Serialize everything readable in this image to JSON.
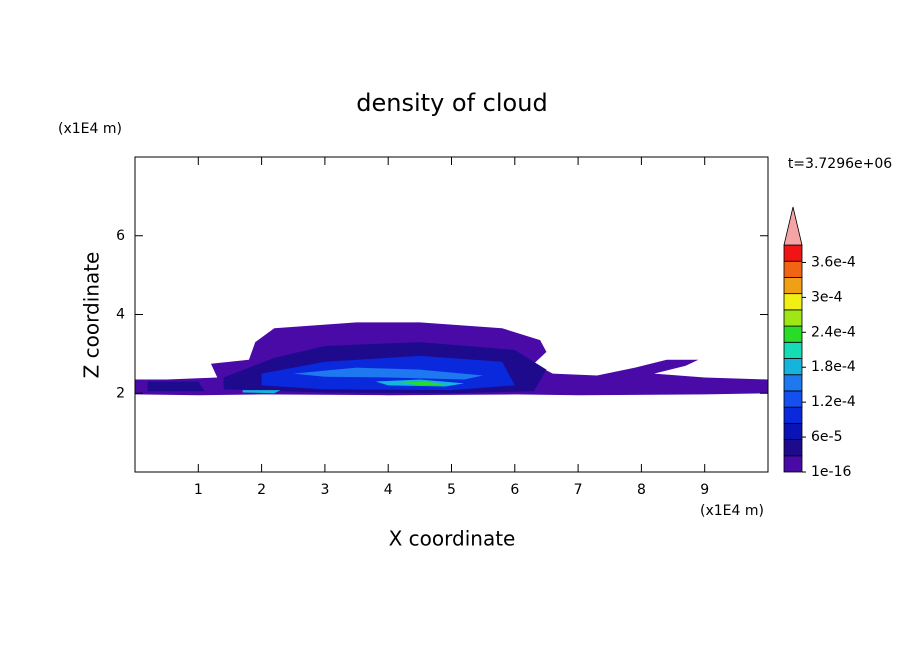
{
  "chart_data": {
    "type": "contour",
    "title": "density of cloud",
    "x_label": "X coordinate",
    "y_label": "Z coordinate",
    "x_unit": "(x1E4 m)",
    "y_unit": "(x1E4 m)",
    "time_label": "t=3.7296e+06",
    "xlim": [
      0,
      10
    ],
    "ylim": [
      0,
      8
    ],
    "xticks": [
      1,
      2,
      3,
      4,
      5,
      6,
      7,
      8,
      9
    ],
    "yticks": [
      2,
      4,
      6
    ],
    "clim": [
      1e-16,
      0.00039
    ],
    "colors": [
      "#4a0aa8",
      "#1e0a8c",
      "#0a14b4",
      "#0a28dc",
      "#1450f0",
      "#1e78f0",
      "#14b4dc",
      "#14dcb4",
      "#28dc28",
      "#a0e614",
      "#f0f014",
      "#f0a014",
      "#f06414",
      "#f01414"
    ],
    "extend_color": "#f4a4a4",
    "colorbar_ticks": [
      {
        "value": 1e-16,
        "label": "1e-16"
      },
      {
        "value": 6e-05,
        "label": "6e-5"
      },
      {
        "value": 0.00012,
        "label": "1.2e-4"
      },
      {
        "value": 0.00018,
        "label": "1.8e-4"
      },
      {
        "value": 0.00024,
        "label": "2.4e-4"
      },
      {
        "value": 0.0003,
        "label": "3e-4"
      },
      {
        "value": 0.00036,
        "label": "3.6e-4"
      }
    ],
    "contours": [
      {
        "level": 1e-16,
        "x": [
          0,
          0.5,
          1.3,
          1.2,
          1.8,
          1.9,
          2.2,
          3.5,
          4.5,
          5.8,
          6.4,
          6.5,
          6.3,
          6.6,
          7.3,
          7.9,
          8.4,
          8.9,
          8.7,
          8.2,
          9.0,
          10,
          10,
          9,
          7,
          6,
          4,
          2,
          1,
          0
        ],
        "z": [
          2.35,
          2.35,
          2.4,
          2.75,
          2.85,
          3.3,
          3.65,
          3.8,
          3.8,
          3.65,
          3.35,
          3.05,
          2.75,
          2.5,
          2.45,
          2.65,
          2.85,
          2.85,
          2.7,
          2.5,
          2.4,
          2.35,
          2.0,
          1.97,
          1.95,
          1.97,
          1.95,
          1.97,
          1.95,
          1.97
        ]
      },
      {
        "level": 3e-05,
        "x": [
          1.4,
          2.2,
          3.0,
          4.5,
          6.0,
          6.5,
          6.3,
          5.0,
          3.0,
          1.4
        ],
        "z": [
          2.4,
          2.9,
          3.2,
          3.3,
          3.1,
          2.6,
          2.05,
          2.0,
          2.02,
          2.1
        ]
      },
      {
        "level": 3e-05,
        "x": [
          0.2,
          1.0,
          1.1,
          0.2
        ],
        "z": [
          2.3,
          2.3,
          2.05,
          2.05
        ]
      },
      {
        "level": 9e-05,
        "x": [
          2.0,
          3.0,
          4.5,
          5.8,
          6.0,
          5.0,
          3.0,
          2.0
        ],
        "z": [
          2.5,
          2.8,
          2.95,
          2.8,
          2.2,
          2.08,
          2.1,
          2.2
        ]
      },
      {
        "level": 0.00015,
        "x": [
          2.5,
          3.5,
          4.5,
          5.5,
          5.2,
          4.0,
          3.0
        ],
        "z": [
          2.5,
          2.65,
          2.6,
          2.45,
          2.35,
          2.4,
          2.42
        ]
      },
      {
        "level": 0.00018,
        "x": [
          3.8,
          4.5,
          5.2,
          4.9,
          4.0
        ],
        "z": [
          2.3,
          2.35,
          2.25,
          2.17,
          2.2
        ]
      },
      {
        "level": 0.00018,
        "x": [
          1.7,
          2.3,
          2.2,
          1.7
        ],
        "z": [
          2.08,
          2.08,
          2.0,
          2.02
        ]
      },
      {
        "level": 0.00024,
        "x": [
          4.2,
          4.6,
          4.9,
          4.5
        ],
        "z": [
          2.27,
          2.3,
          2.22,
          2.2
        ]
      }
    ]
  }
}
